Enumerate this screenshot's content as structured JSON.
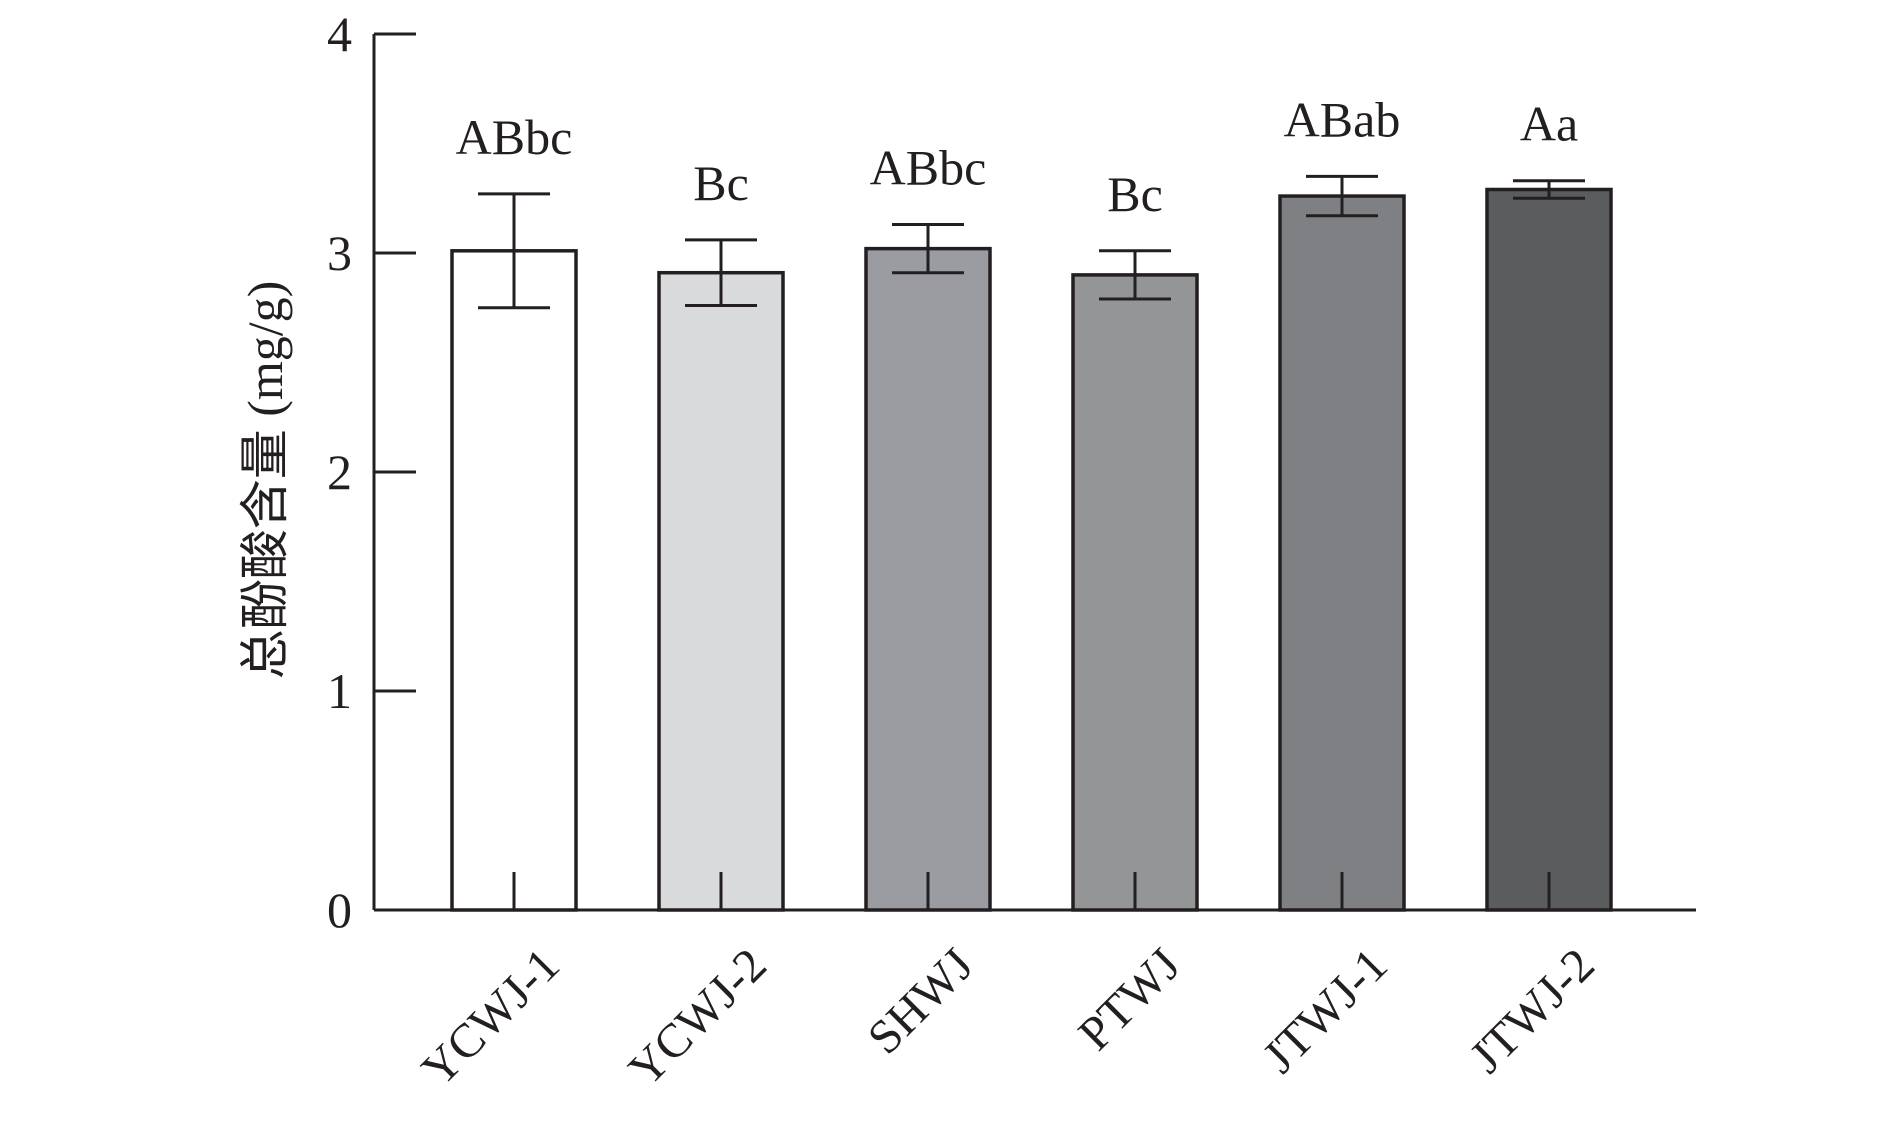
{
  "chart_data": {
    "type": "bar",
    "title": "",
    "xlabel": "",
    "ylabel": "总酚酸含量 (mg/g)",
    "ylim": [
      0,
      4
    ],
    "yticks": [
      "0",
      "1",
      "2",
      "3",
      "4"
    ],
    "grid": false,
    "categories": [
      "YCWJ-1",
      "YCWJ-2",
      "SHWJ",
      "PTWJ",
      "JTWJ-1",
      "JTWJ-2"
    ],
    "values": [
      3.01,
      2.91,
      3.02,
      2.9,
      3.26,
      3.29
    ],
    "errors": [
      0.26,
      0.15,
      0.11,
      0.11,
      0.09,
      0.04
    ],
    "significance": [
      "ABbc",
      "Bc",
      "ABbc",
      "Bc",
      "ABab",
      "Aa"
    ],
    "colors": [
      "#ffffff",
      "#d9dadc",
      "#9a9ca2",
      "#949597",
      "#7f8083",
      "#5b5c5e"
    ]
  }
}
